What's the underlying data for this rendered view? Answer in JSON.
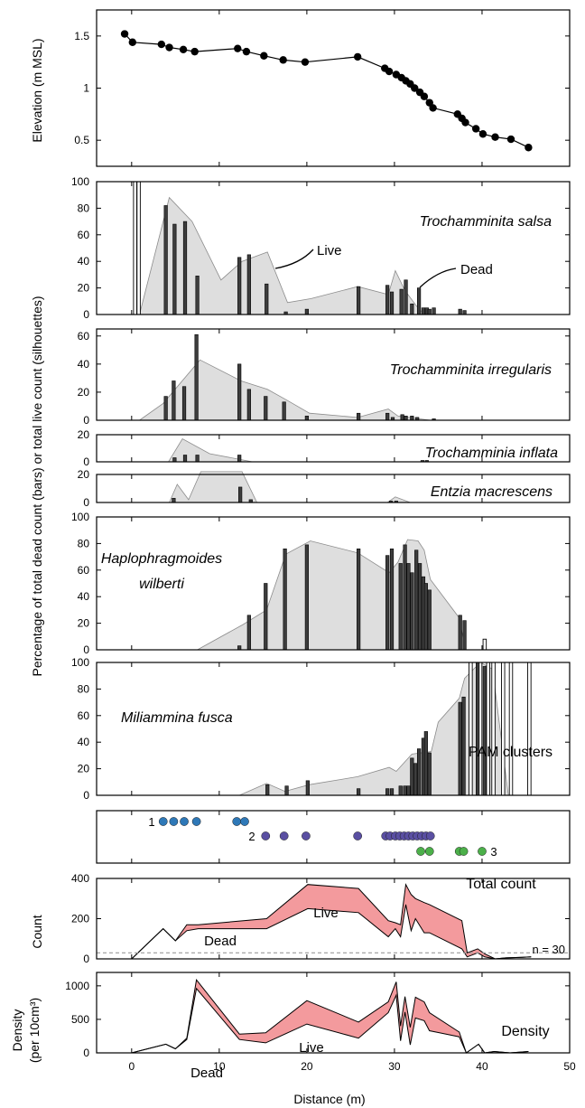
{
  "chart_data": {
    "type": "composite",
    "xlabel": "Distance (m)",
    "xlim": [
      -4,
      50
    ],
    "xticks": [
      0,
      10,
      20,
      30,
      40,
      50
    ],
    "shared_ylabel": "Percentage of total dead count (bars) or total live count (silhouettes)",
    "elevation": {
      "type": "line",
      "ylabel": "Elevation (m  MSL)",
      "ylim": [
        0.25,
        1.75
      ],
      "yticks": [
        0.5,
        1,
        1.5
      ],
      "points": [
        [
          -0.8,
          1.52
        ],
        [
          0.1,
          1.44
        ],
        [
          3.4,
          1.42
        ],
        [
          4.3,
          1.39
        ],
        [
          5.9,
          1.37
        ],
        [
          7.2,
          1.35
        ],
        [
          12.1,
          1.38
        ],
        [
          13.1,
          1.35
        ],
        [
          15.1,
          1.31
        ],
        [
          17.3,
          1.27
        ],
        [
          19.8,
          1.25
        ],
        [
          25.8,
          1.3
        ],
        [
          28.9,
          1.19
        ],
        [
          29.4,
          1.16
        ],
        [
          30.2,
          1.13
        ],
        [
          30.8,
          1.1
        ],
        [
          31.3,
          1.07
        ],
        [
          31.8,
          1.04
        ],
        [
          32.3,
          1.0
        ],
        [
          32.9,
          0.96
        ],
        [
          33.4,
          0.92
        ],
        [
          34.0,
          0.86
        ],
        [
          34.4,
          0.81
        ],
        [
          37.2,
          0.75
        ],
        [
          37.7,
          0.71
        ],
        [
          38.1,
          0.67
        ],
        [
          39.3,
          0.61
        ],
        [
          40.1,
          0.56
        ],
        [
          41.5,
          0.53
        ],
        [
          43.3,
          0.51
        ],
        [
          45.3,
          0.43
        ]
      ]
    },
    "species": [
      {
        "name": "Trochamminita salsa",
        "ylim": [
          0,
          100
        ],
        "yticks": [
          0,
          20,
          40,
          60,
          80,
          100
        ],
        "annotations": [
          "Live",
          "Dead"
        ],
        "dead_bars": [
          [
            3.9,
            82
          ],
          [
            4.9,
            68
          ],
          [
            6.1,
            70
          ],
          [
            7.5,
            29
          ],
          [
            12.3,
            43
          ],
          [
            13.4,
            45
          ],
          [
            15.4,
            23
          ],
          [
            17.6,
            2
          ],
          [
            20.0,
            4
          ],
          [
            25.9,
            21
          ],
          [
            29.2,
            22
          ],
          [
            29.7,
            17
          ],
          [
            30.8,
            19
          ],
          [
            31.3,
            26
          ],
          [
            32.0,
            8
          ],
          [
            32.8,
            20
          ],
          [
            33.3,
            5
          ],
          [
            33.7,
            5
          ],
          [
            34.0,
            4
          ],
          [
            34.5,
            5
          ],
          [
            37.5,
            4
          ],
          [
            38.0,
            3
          ]
        ],
        "dead_open_bars": [
          [
            0.4,
            100
          ],
          [
            0.8,
            100
          ]
        ],
        "live": [
          [
            0.9,
            0
          ],
          [
            4.3,
            88
          ],
          [
            6.9,
            70
          ],
          [
            10.2,
            26
          ],
          [
            12.6,
            40
          ],
          [
            15.5,
            47
          ],
          [
            17.8,
            9
          ],
          [
            20.5,
            12
          ],
          [
            25.8,
            21
          ],
          [
            29.3,
            15
          ],
          [
            30.1,
            33
          ],
          [
            31.2,
            18
          ],
          [
            32.9,
            3
          ],
          [
            34.1,
            0
          ]
        ]
      },
      {
        "name": "Trochamminita irregularis",
        "ylim": [
          0,
          65
        ],
        "yticks": [
          0,
          20,
          40,
          60
        ],
        "dead_bars": [
          [
            3.9,
            17
          ],
          [
            4.8,
            28
          ],
          [
            6.0,
            24
          ],
          [
            7.4,
            61
          ],
          [
            12.3,
            40
          ],
          [
            13.4,
            22
          ],
          [
            15.3,
            17
          ],
          [
            17.4,
            13
          ],
          [
            20.0,
            3
          ],
          [
            25.9,
            5
          ],
          [
            29.2,
            5
          ],
          [
            29.8,
            2
          ],
          [
            30.9,
            4
          ],
          [
            31.3,
            3
          ],
          [
            32.0,
            3
          ],
          [
            32.6,
            2
          ],
          [
            34.5,
            1
          ]
        ],
        "live": [
          [
            0.9,
            0
          ],
          [
            3.6,
            12
          ],
          [
            7.8,
            43
          ],
          [
            12.5,
            28
          ],
          [
            15.5,
            22
          ],
          [
            17.8,
            14
          ],
          [
            20.3,
            5
          ],
          [
            25.8,
            2
          ],
          [
            29.3,
            8
          ],
          [
            30.4,
            3
          ],
          [
            34.1,
            0
          ]
        ]
      },
      {
        "name": "Trochamminia inflata",
        "ylim": [
          0,
          20
        ],
        "yticks": [
          0,
          20
        ],
        "dead_bars": [
          [
            4.9,
            3
          ],
          [
            6.1,
            5
          ],
          [
            7.5,
            5
          ],
          [
            12.3,
            5
          ],
          [
            33.2,
            1
          ],
          [
            33.7,
            1
          ]
        ],
        "live": [
          [
            4.2,
            0
          ],
          [
            5.8,
            17
          ],
          [
            8.9,
            6
          ],
          [
            13.8,
            0
          ]
        ]
      },
      {
        "name": "Entzia macrescens",
        "ylim": [
          0,
          20
        ],
        "yticks": [
          0,
          20
        ],
        "dead_bars": [
          [
            4.8,
            3
          ],
          [
            12.4,
            11
          ],
          [
            13.6,
            2
          ],
          [
            29.6,
            1
          ],
          [
            30.2,
            1
          ]
        ],
        "live": [
          [
            4.3,
            0
          ],
          [
            5.2,
            13
          ],
          [
            6.5,
            2
          ],
          [
            7.9,
            22
          ],
          [
            12.6,
            22
          ],
          [
            14.3,
            0
          ],
          [
            29.2,
            0
          ],
          [
            30.1,
            4
          ],
          [
            31.8,
            0
          ]
        ]
      },
      {
        "name": "Haplophragmoides wilberti",
        "ylim": [
          0,
          100
        ],
        "yticks": [
          0,
          20,
          40,
          60,
          80,
          100
        ],
        "dead_bars": [
          [
            12.3,
            3
          ],
          [
            13.4,
            26
          ],
          [
            15.3,
            50
          ],
          [
            17.5,
            76
          ],
          [
            20.0,
            79
          ],
          [
            25.9,
            76
          ],
          [
            29.2,
            71
          ],
          [
            29.7,
            76
          ],
          [
            30.7,
            65
          ],
          [
            31.2,
            79
          ],
          [
            31.6,
            65
          ],
          [
            32.0,
            58
          ],
          [
            32.5,
            75
          ],
          [
            32.9,
            65
          ],
          [
            33.3,
            55
          ],
          [
            33.6,
            50
          ],
          [
            34.0,
            45
          ],
          [
            37.5,
            26
          ],
          [
            38.0,
            22
          ]
        ],
        "dead_open_bars": [
          [
            40.3,
            8
          ]
        ],
        "live": [
          [
            7.5,
            0
          ],
          [
            12.7,
            19
          ],
          [
            15.4,
            30
          ],
          [
            17.6,
            72
          ],
          [
            20.4,
            82
          ],
          [
            25.8,
            73
          ],
          [
            29.4,
            58
          ],
          [
            30.4,
            66
          ],
          [
            31.5,
            83
          ],
          [
            32.7,
            82
          ],
          [
            33.4,
            75
          ],
          [
            34.1,
            53
          ],
          [
            37.4,
            24
          ],
          [
            38.1,
            0
          ]
        ]
      },
      {
        "name": "Miliammina fusca",
        "ylim": [
          0,
          100
        ],
        "yticks": [
          0,
          20,
          40,
          60,
          80,
          100
        ],
        "dead_bars": [
          [
            15.5,
            8
          ],
          [
            17.7,
            7
          ],
          [
            20.1,
            11
          ],
          [
            25.9,
            5
          ],
          [
            29.2,
            5
          ],
          [
            29.7,
            5
          ],
          [
            30.7,
            7
          ],
          [
            31.2,
            7
          ],
          [
            31.6,
            7
          ],
          [
            32.0,
            28
          ],
          [
            32.4,
            24
          ],
          [
            32.8,
            35
          ],
          [
            33.3,
            43
          ],
          [
            33.6,
            48
          ],
          [
            34.0,
            32
          ],
          [
            37.5,
            70
          ],
          [
            37.9,
            74
          ],
          [
            39.5,
            100
          ],
          [
            40.3,
            97
          ]
        ],
        "dead_open_bars": [
          [
            38.7,
            100
          ],
          [
            39.8,
            100
          ],
          [
            40.7,
            100
          ],
          [
            41.3,
            100
          ],
          [
            42.4,
            100
          ],
          [
            43.3,
            100
          ],
          [
            45.4,
            100
          ]
        ],
        "live": [
          [
            12.3,
            0
          ],
          [
            15.4,
            9
          ],
          [
            17.5,
            3
          ],
          [
            20.3,
            8
          ],
          [
            25.8,
            14
          ],
          [
            29.4,
            21
          ],
          [
            30.2,
            18
          ],
          [
            32.0,
            31
          ],
          [
            34.2,
            33
          ],
          [
            35.0,
            55
          ],
          [
            37.4,
            73
          ],
          [
            38.0,
            88
          ],
          [
            39.8,
            100
          ],
          [
            41.2,
            95
          ],
          [
            43.0,
            0
          ]
        ]
      }
    ],
    "pam_clusters": {
      "title": "PAM clusters",
      "colors": [
        "#2e78b7",
        "#5a4fa2",
        "#4cb04a"
      ],
      "labels": [
        "1",
        "2",
        "3"
      ],
      "points": [
        {
          "cluster": 1,
          "x": [
            3.6,
            4.8,
            6.0,
            7.4,
            12.0,
            12.9
          ]
        },
        {
          "cluster": 2,
          "x": [
            15.3,
            17.4,
            19.9,
            25.8,
            29.0,
            29.5,
            30.1,
            30.6,
            31.1,
            31.6,
            32.1,
            32.6,
            33.1,
            33.6,
            34.1
          ]
        },
        {
          "cluster": 3,
          "x": [
            33.0,
            34.0,
            37.4,
            37.9,
            40.0
          ]
        }
      ]
    },
    "total_count": {
      "type": "area",
      "title": "Total count",
      "ylabel": "Count",
      "ylim": [
        0,
        400
      ],
      "yticks": [
        0,
        200,
        400
      ],
      "annotations": [
        "Live",
        "Dead"
      ],
      "threshold_label": "n = 30",
      "threshold": 30,
      "dead": [
        [
          0,
          0
        ],
        [
          3.6,
          150
        ],
        [
          5.0,
          90
        ],
        [
          6.3,
          140
        ],
        [
          7.6,
          150
        ],
        [
          15.4,
          150
        ],
        [
          20.1,
          250
        ],
        [
          25.9,
          230
        ],
        [
          29.3,
          110
        ],
        [
          30.1,
          150
        ],
        [
          30.7,
          110
        ],
        [
          31.3,
          270
        ],
        [
          31.9,
          140
        ],
        [
          32.4,
          200
        ],
        [
          33.4,
          130
        ],
        [
          34.0,
          130
        ],
        [
          37.7,
          50
        ],
        [
          38.3,
          10
        ],
        [
          39.5,
          30
        ],
        [
          40.3,
          10
        ],
        [
          41.5,
          0
        ],
        [
          42.7,
          5
        ],
        [
          44.6,
          8
        ],
        [
          45.6,
          10
        ]
      ],
      "live": [
        [
          0,
          0
        ],
        [
          3.6,
          150
        ],
        [
          5.0,
          90
        ],
        [
          6.3,
          170
        ],
        [
          7.6,
          170
        ],
        [
          15.4,
          200
        ],
        [
          20.1,
          370
        ],
        [
          25.9,
          350
        ],
        [
          29.3,
          190
        ],
        [
          30.1,
          180
        ],
        [
          30.7,
          170
        ],
        [
          31.3,
          370
        ],
        [
          31.9,
          320
        ],
        [
          32.4,
          300
        ],
        [
          33.4,
          280
        ],
        [
          34.0,
          270
        ],
        [
          37.7,
          190
        ],
        [
          38.3,
          30
        ],
        [
          39.5,
          50
        ],
        [
          40.3,
          25
        ],
        [
          41.5,
          0
        ],
        [
          42.7,
          5
        ],
        [
          44.6,
          8
        ],
        [
          45.6,
          10
        ]
      ]
    },
    "density": {
      "type": "area",
      "title": "Density",
      "ylabel": "Density",
      "ylabel2": "(per 10cm³)",
      "ylim": [
        0,
        1200
      ],
      "yticks": [
        0,
        500,
        1000
      ],
      "annotations": [
        "Live",
        "Dead"
      ],
      "dead": [
        [
          0,
          0
        ],
        [
          3.9,
          130
        ],
        [
          5.0,
          60
        ],
        [
          6.3,
          200
        ],
        [
          7.4,
          960
        ],
        [
          12.3,
          200
        ],
        [
          15.3,
          150
        ],
        [
          20.0,
          430
        ],
        [
          25.9,
          220
        ],
        [
          29.3,
          600
        ],
        [
          30.2,
          860
        ],
        [
          30.7,
          180
        ],
        [
          31.2,
          610
        ],
        [
          31.8,
          120
        ],
        [
          32.4,
          520
        ],
        [
          33.4,
          480
        ],
        [
          34.0,
          330
        ],
        [
          37.4,
          240
        ],
        [
          38.2,
          0
        ],
        [
          39.6,
          130
        ],
        [
          40.3,
          0
        ],
        [
          41.4,
          20
        ],
        [
          43.2,
          0
        ],
        [
          45.3,
          20
        ]
      ],
      "live": [
        [
          0,
          0
        ],
        [
          3.9,
          130
        ],
        [
          5.0,
          60
        ],
        [
          6.3,
          220
        ],
        [
          7.4,
          1090
        ],
        [
          12.3,
          280
        ],
        [
          15.3,
          300
        ],
        [
          20.0,
          780
        ],
        [
          25.9,
          460
        ],
        [
          29.3,
          760
        ],
        [
          30.2,
          1060
        ],
        [
          30.7,
          400
        ],
        [
          31.2,
          840
        ],
        [
          31.8,
          380
        ],
        [
          32.4,
          830
        ],
        [
          33.4,
          760
        ],
        [
          34.0,
          600
        ],
        [
          37.4,
          310
        ],
        [
          38.2,
          0
        ],
        [
          39.6,
          130
        ],
        [
          40.3,
          0
        ],
        [
          41.4,
          20
        ],
        [
          43.2,
          0
        ],
        [
          45.3,
          20
        ]
      ]
    }
  }
}
